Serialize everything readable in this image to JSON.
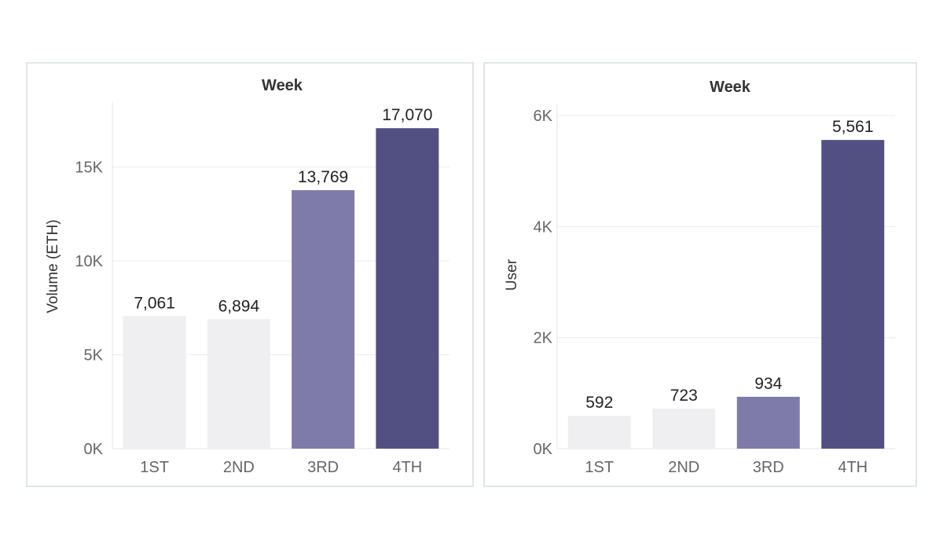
{
  "colors": {
    "background": "#ffffff",
    "panel_border": "#dfe6e6",
    "bar_light": "#efeff1",
    "bar_mid": "#7e7ba8",
    "bar_dark": "#525083"
  },
  "chart_data": [
    {
      "type": "bar",
      "title": "Week",
      "xlabel": "",
      "ylabel": "Volume (ETH)",
      "categories": [
        "1ST",
        "2ND",
        "3RD",
        "4TH"
      ],
      "values": [
        7061,
        6894,
        13769,
        17070
      ],
      "value_labels": [
        "7,061",
        "6,894",
        "13,769",
        "17,070"
      ],
      "bar_colors": [
        "#efeff1",
        "#efeff1",
        "#7e7ba8",
        "#525083"
      ],
      "ylim": [
        0,
        18500
      ],
      "yticks": [
        0,
        5000,
        10000,
        15000
      ],
      "ytick_labels": [
        "0K",
        "5K",
        "10K",
        "15K"
      ],
      "grid": true,
      "legend": "none"
    },
    {
      "type": "bar",
      "title": "Week",
      "xlabel": "",
      "ylabel": "User",
      "categories": [
        "1ST",
        "2ND",
        "3RD",
        "4TH"
      ],
      "values": [
        592,
        723,
        934,
        5561
      ],
      "value_labels": [
        "592",
        "723",
        "934",
        "5,561"
      ],
      "bar_colors": [
        "#efeff1",
        "#efeff1",
        "#7e7ba8",
        "#525083"
      ],
      "ylim": [
        0,
        6200
      ],
      "yticks": [
        0,
        2000,
        4000,
        6000
      ],
      "ytick_labels": [
        "0K",
        "2K",
        "4K",
        "6K"
      ],
      "grid": true,
      "legend": "none"
    }
  ]
}
